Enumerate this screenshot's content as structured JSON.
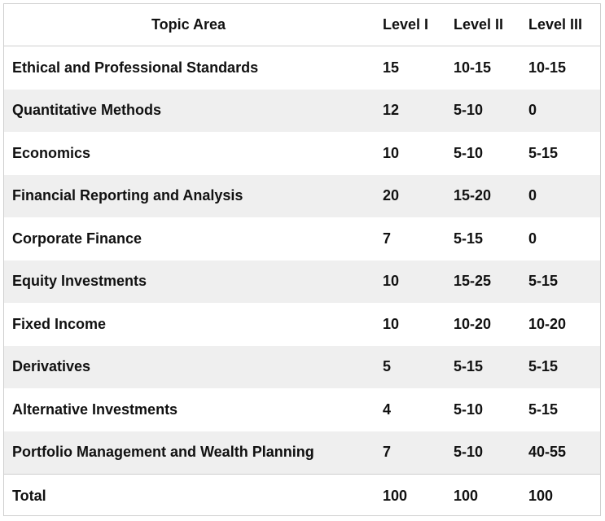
{
  "table": {
    "headers": [
      "Topic Area",
      "Level I",
      "Level II",
      "Level III"
    ],
    "rows": [
      [
        "Ethical and Professional Standards",
        "15",
        "10-15",
        "10-15"
      ],
      [
        "Quantitative Methods",
        "12",
        "5-10",
        "0"
      ],
      [
        "Economics",
        "10",
        "5-10",
        "5-15"
      ],
      [
        "Financial Reporting and Analysis",
        "20",
        "15-20",
        "0"
      ],
      [
        "Corporate Finance",
        "7",
        "5-15",
        "0"
      ],
      [
        "Equity Investments",
        "10",
        "15-25",
        "5-15"
      ],
      [
        "Fixed Income",
        "10",
        "10-20",
        "10-20"
      ],
      [
        "Derivatives",
        "5",
        "5-15",
        "5-15"
      ],
      [
        "Alternative Investments",
        "4",
        "5-10",
        "5-15"
      ],
      [
        "Portfolio Management and Wealth Planning",
        "7",
        "5-10",
        "40-55"
      ],
      [
        "Total",
        "100",
        "100",
        "100"
      ]
    ],
    "shaded_row_color": "#efefef",
    "border_color": "#cfcfcf"
  }
}
